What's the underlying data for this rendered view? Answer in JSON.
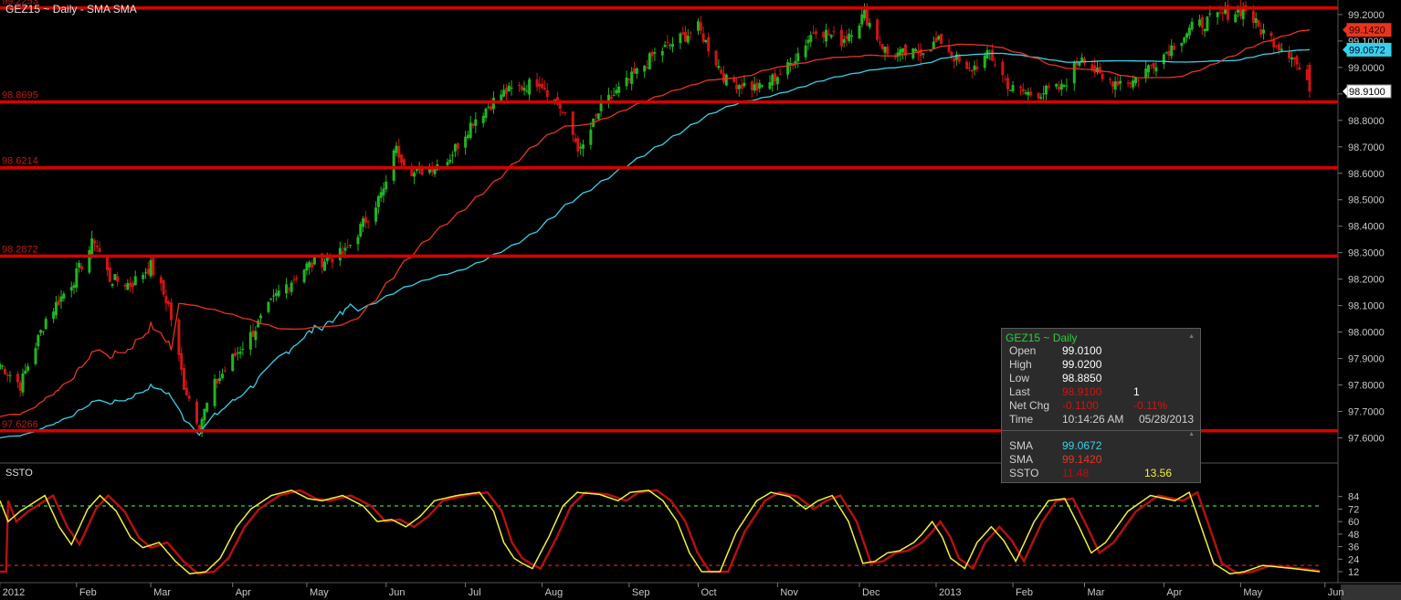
{
  "title": "GEZ15 ~ Daily  -  SMA SMA",
  "colors": {
    "bg": "#000000",
    "up": "#22b422",
    "down": "#d01414",
    "sma_fast": "#e8341e",
    "sma_slow": "#35d2e8",
    "level": "#d80000",
    "stoch_k": "#f0f03a",
    "stoch_d": "#b81010",
    "axis_text": "#c8c8c8"
  },
  "chart_data": {
    "type": "candlestick",
    "symbol": "GEZ15 ~ Daily",
    "x_months": [
      "2012",
      "Feb",
      "Mar",
      "Apr",
      "May",
      "Jun",
      "Jul",
      "Aug",
      "Sep",
      "Oct",
      "Nov",
      "Dec",
      "2013",
      "Feb",
      "Mar",
      "Apr",
      "May",
      "Jun"
    ],
    "y_ticks": [
      "99.2000",
      "99.1000",
      "99.0000",
      "98.9000",
      "98.8000",
      "98.7000",
      "98.6000",
      "98.5000",
      "98.4000",
      "98.3000",
      "98.2000",
      "98.1000",
      "98.0000",
      "97.9000",
      "97.8000",
      "97.7000",
      "97.6000"
    ],
    "price_range": [
      97.505,
      99.255
    ],
    "close_path": [
      [
        "2012-01-02",
        97.88
      ],
      [
        "2012-01-10",
        97.8
      ],
      [
        "2012-01-20",
        98.05
      ],
      [
        "2012-01-31",
        98.2
      ],
      [
        "2012-02-08",
        98.35
      ],
      [
        "2012-02-14",
        98.2
      ],
      [
        "2012-02-22",
        98.18
      ],
      [
        "2012-03-01",
        98.25
      ],
      [
        "2012-03-08",
        98.1
      ],
      [
        "2012-03-14",
        97.8
      ],
      [
        "2012-03-20",
        97.65
      ],
      [
        "2012-03-26",
        97.8
      ],
      [
        "2012-04-02",
        97.9
      ],
      [
        "2012-04-10",
        98.0
      ],
      [
        "2012-04-20",
        98.15
      ],
      [
        "2012-05-01",
        98.25
      ],
      [
        "2012-05-16",
        98.3
      ],
      [
        "2012-06-01",
        98.55
      ],
      [
        "2012-06-04",
        98.7
      ],
      [
        "2012-06-12",
        98.6
      ],
      [
        "2012-06-25",
        98.65
      ],
      [
        "2012-07-05",
        98.8
      ],
      [
        "2012-07-16",
        98.9
      ],
      [
        "2012-07-31",
        98.95
      ],
      [
        "2012-08-08",
        98.85
      ],
      [
        "2012-08-16",
        98.68
      ],
      [
        "2012-08-24",
        98.85
      ],
      [
        "2012-09-04",
        98.95
      ],
      [
        "2012-09-14",
        99.05
      ],
      [
        "2012-10-01",
        99.15
      ],
      [
        "2012-10-12",
        98.95
      ],
      [
        "2012-10-25",
        98.92
      ],
      [
        "2012-11-05",
        99.0
      ],
      [
        "2012-11-16",
        99.15
      ],
      [
        "2012-11-26",
        99.1
      ],
      [
        "2012-12-05",
        99.2
      ],
      [
        "2012-12-14",
        99.05
      ],
      [
        "2012-12-24",
        99.05
      ],
      [
        "2013-01-04",
        99.1
      ],
      [
        "2013-01-14",
        98.98
      ],
      [
        "2013-01-23",
        99.05
      ],
      [
        "2013-01-31",
        98.92
      ],
      [
        "2013-02-08",
        98.9
      ],
      [
        "2013-02-20",
        98.92
      ],
      [
        "2013-02-28",
        99.05
      ],
      [
        "2013-03-08",
        98.95
      ],
      [
        "2013-03-20",
        98.95
      ],
      [
        "2013-04-01",
        99.05
      ],
      [
        "2013-04-12",
        99.15
      ],
      [
        "2013-04-24",
        99.2
      ],
      [
        "2013-05-03",
        99.22
      ],
      [
        "2013-05-08",
        99.15
      ],
      [
        "2013-05-14",
        99.1
      ],
      [
        "2013-05-21",
        99.05
      ],
      [
        "2013-05-28",
        98.91
      ]
    ],
    "last_candle": {
      "open": 99.01,
      "high": 99.02,
      "low": 98.885,
      "close": 98.91
    },
    "indicators": [
      {
        "name": "SMA",
        "color": "#35d2e8",
        "start": 97.6,
        "last": 99.0672
      },
      {
        "name": "SMA",
        "color": "#e8341e",
        "start": 97.68,
        "last": 99.142
      }
    ],
    "levels": [
      "99.2253",
      "98.8695",
      "98.6214",
      "98.2872",
      "97.6266"
    ],
    "level_values": [
      99.2253,
      98.8695,
      98.6214,
      98.2872,
      97.6266
    ],
    "price_tags": [
      {
        "value": 99.142,
        "label": "99.1420",
        "color": "#e8341e"
      },
      {
        "value": 99.0672,
        "label": "99.0672",
        "color": "#35d2e8"
      },
      {
        "value": 98.91,
        "label": "98.9100",
        "color": "#ffffff"
      }
    ],
    "stochastic": {
      "name": "SSTO",
      "y_ticks": [
        "84",
        "72",
        "60",
        "48",
        "36",
        "24",
        "12"
      ],
      "range": [
        5,
        96
      ],
      "overbought": 75,
      "oversold": 18,
      "k_path": [
        [
          "2012-01-02",
          80
        ],
        [
          "2012-01-06",
          60
        ],
        [
          "2012-01-12",
          70
        ],
        [
          "2012-01-24",
          85
        ],
        [
          "2012-01-31",
          55
        ],
        [
          "2012-02-06",
          38
        ],
        [
          "2012-02-14",
          72
        ],
        [
          "2012-02-20",
          85
        ],
        [
          "2012-02-28",
          70
        ],
        [
          "2012-03-06",
          45
        ],
        [
          "2012-03-12",
          35
        ],
        [
          "2012-03-20",
          40
        ],
        [
          "2012-03-28",
          22
        ],
        [
          "2012-04-04",
          10
        ],
        [
          "2012-04-12",
          12
        ],
        [
          "2012-04-19",
          25
        ],
        [
          "2012-04-27",
          55
        ],
        [
          "2012-05-04",
          72
        ],
        [
          "2012-05-14",
          85
        ],
        [
          "2012-05-24",
          90
        ],
        [
          "2012-06-01",
          82
        ],
        [
          "2012-06-08",
          80
        ],
        [
          "2012-06-18",
          85
        ],
        [
          "2012-06-28",
          75
        ],
        [
          "2012-07-05",
          60
        ],
        [
          "2012-07-12",
          62
        ],
        [
          "2012-07-19",
          55
        ],
        [
          "2012-07-26",
          65
        ],
        [
          "2012-08-02",
          80
        ],
        [
          "2012-08-13",
          85
        ],
        [
          "2012-08-24",
          88
        ],
        [
          "2012-08-31",
          70
        ],
        [
          "2012-09-05",
          40
        ],
        [
          "2012-09-10",
          25
        ],
        [
          "2012-09-14",
          20
        ],
        [
          "2012-09-19",
          15
        ],
        [
          "2012-09-27",
          45
        ],
        [
          "2012-10-04",
          75
        ],
        [
          "2012-10-11",
          88
        ],
        [
          "2012-10-22",
          86
        ],
        [
          "2012-10-31",
          80
        ],
        [
          "2012-11-06",
          88
        ],
        [
          "2012-11-15",
          90
        ],
        [
          "2012-11-22",
          80
        ],
        [
          "2012-11-29",
          60
        ],
        [
          "2012-12-05",
          30
        ],
        [
          "2012-12-11",
          12
        ],
        [
          "2012-12-20",
          12
        ],
        [
          "2012-12-28",
          50
        ],
        [
          "2013-01-07",
          80
        ],
        [
          "2013-01-14",
          88
        ],
        [
          "2013-01-23",
          84
        ],
        [
          "2013-01-31",
          72
        ],
        [
          "2013-02-06",
          80
        ],
        [
          "2013-02-13",
          85
        ],
        [
          "2013-02-21",
          60
        ],
        [
          "2013-02-28",
          20
        ],
        [
          "2013-03-06",
          22
        ],
        [
          "2013-03-12",
          30
        ],
        [
          "2013-03-18",
          32
        ],
        [
          "2013-03-25",
          40
        ],
        [
          "2013-03-29",
          48
        ],
        [
          "2013-04-03",
          60
        ],
        [
          "2013-04-08",
          45
        ],
        [
          "2013-04-12",
          25
        ],
        [
          "2013-04-19",
          15
        ],
        [
          "2013-04-25",
          40
        ],
        [
          "2013-05-02",
          55
        ],
        [
          "2013-05-08",
          42
        ],
        [
          "2013-05-14",
          22
        ],
        [
          "2013-05-23",
          60
        ],
        [
          "2013-05-30",
          80
        ],
        [
          "2013-06-07",
          82
        ],
        [
          "2013-06-14",
          55
        ],
        [
          "2013-06-20",
          30
        ],
        [
          "2013-06-27",
          40
        ],
        [
          "2013-07-08",
          70
        ],
        [
          "2013-07-19",
          85
        ],
        [
          "2013-07-31",
          80
        ],
        [
          "2013-08-07",
          88
        ],
        [
          "2013-08-12",
          60
        ],
        [
          "2013-08-19",
          20
        ],
        [
          "2013-08-27",
          10
        ],
        [
          "2013-09-03",
          12
        ],
        [
          "2013-09-12",
          18
        ],
        [
          "2013-09-27",
          15
        ],
        [
          "2013-10-10",
          12
        ]
      ]
    },
    "month_ticks": [
      [
        "2012-01-02",
        "2012"
      ],
      [
        "2012-02-01",
        "Feb"
      ],
      [
        "2012-03-01",
        "Mar"
      ],
      [
        "2012-04-02",
        "Apr"
      ],
      [
        "2012-05-01",
        "May"
      ],
      [
        "2012-06-01",
        "Jun"
      ],
      [
        "2012-07-02",
        "Jul"
      ],
      [
        "2012-08-01",
        "Aug"
      ],
      [
        "2012-09-04",
        "Sep"
      ],
      [
        "2012-10-01",
        "Oct"
      ],
      [
        "2012-11-01",
        "Nov"
      ],
      [
        "2012-12-03",
        "Dec"
      ],
      [
        "2013-01-02",
        "2013"
      ],
      [
        "2013-02-01",
        "Feb"
      ],
      [
        "2013-03-01",
        "Mar"
      ],
      [
        "2013-04-01",
        "Apr"
      ],
      [
        "2013-05-01",
        "May"
      ],
      [
        "2013-06-03",
        "Jun"
      ]
    ]
  },
  "tooltip": {
    "header": "GEZ15 ~ Daily",
    "open_label": "Open",
    "open_value": "99.0100",
    "high_label": "High",
    "high_value": "99.0200",
    "low_label": "Low",
    "low_value": "98.8850",
    "last_label": "Last",
    "last_value": "98.9100",
    "last_size": "1",
    "netchg_label": "Net Chg",
    "netchg_value": "-0.1100",
    "netchg_pct": "-0.11%",
    "time_label": "Time",
    "time_value": "10:14:26 AM",
    "date_value": "05/28/2013",
    "sma1_label": "SMA",
    "sma1_value": "99.0672",
    "sma2_label": "SMA",
    "sma2_value": "99.1420",
    "ssto_label": "SSTO",
    "ssto_value1": "11.48",
    "ssto_value2": "13.56"
  }
}
